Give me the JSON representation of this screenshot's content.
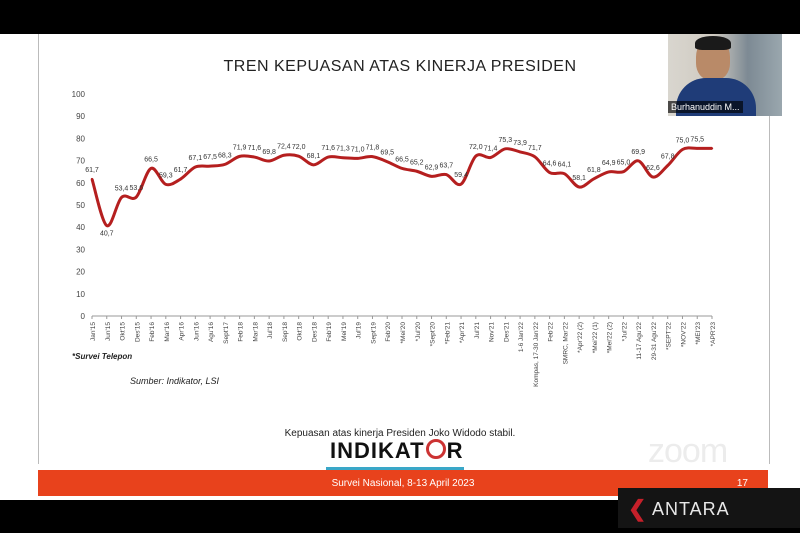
{
  "slide": {
    "title": "TREN KEPUASAN ATAS KINERJA PRESIDEN",
    "note_survey": "*Survei Telepon",
    "note_source": "Sumber: Indikator, LSI",
    "caption": "Kepuasan atas kinerja Presiden Joko Widodo stabil.",
    "logo": {
      "prefix": "INDIKAT",
      "suffix": "R"
    },
    "footer_text": "Survei Nasional, 8-13 April 2023",
    "page_number": "17"
  },
  "video": {
    "participant_name": "Burhanuddin M...",
    "watermark": "zoom",
    "agency": "ANTARA"
  },
  "colors": {
    "line": "#b51f1f",
    "footer": "#e8421c",
    "logo_bar": "#3aa7c8"
  },
  "chart_data": {
    "type": "line",
    "title": "TREN KEPUASAN ATAS KINERJA PRESIDEN",
    "ylim": [
      0,
      100
    ],
    "yticks": [
      0,
      10,
      20,
      30,
      40,
      50,
      60,
      70,
      80,
      90,
      100
    ],
    "grid": false,
    "legend": "none",
    "categories": [
      "Jan'15",
      "Jun'15",
      "Okt'15",
      "Des'15",
      "Feb'16",
      "Mar'16",
      "Apr'16",
      "Jun'16",
      "Agu'16",
      "Sept'17",
      "Feb'18",
      "Mar'18",
      "Jul'18",
      "Sep'18",
      "Okt'18",
      "Des'18",
      "Feb'19",
      "Mei'19",
      "Jul'19",
      "Sept'19",
      "Feb'20",
      "*Mei'20",
      "*Jul'20",
      "*Sept'20",
      "*Feb'21",
      "*Apr'21",
      "Jul'21",
      "Nov'21",
      "Des'21",
      "1-6 Jan'22",
      "Kompas, 17-30 Jan'22",
      "Feb'22",
      "SMRC, Mar'22",
      "*Apr'22 (2)",
      "*Mei'22 (1)",
      "*Mei'22 (2)",
      "*Jul'22",
      "11-17 Agu'22",
      "29-31 Agu'22",
      "*SEPT'22",
      "*NOV'22",
      "*MEI'23",
      "*APR'23"
    ],
    "values": [
      61.7,
      40.7,
      53.4,
      53.6,
      66.5,
      59.3,
      61.7,
      67.1,
      67.5,
      68.3,
      71.9,
      71.6,
      69.8,
      72.4,
      72.0,
      68.1,
      71.6,
      71.3,
      71.0,
      71.8,
      69.5,
      66.5,
      65.2,
      62.9,
      63.7,
      59.4,
      72.0,
      71.4,
      75.3,
      73.9,
      71.7,
      64.6,
      64.1,
      58.1,
      61.8,
      64.9,
      65.0,
      69.9,
      62.6,
      67.8,
      75.0,
      75.5,
      75.5
    ],
    "point_labels": [
      "61,7",
      "40,7",
      "53,4",
      "53,6",
      "66,5",
      "59,3",
      "61,7",
      "67,1",
      "67,5",
      "68,3",
      "71,9",
      "71,6",
      "69,8",
      "72,4",
      "72,0",
      "68,1",
      "71,6",
      "71,3",
      "71,0",
      "71,8",
      "69,5",
      "66,5",
      "65,2",
      "62,9",
      "63,7",
      "59,4",
      "72,0",
      "71,4",
      "75,3",
      "73,9",
      "71,7",
      "64,6",
      "64,1",
      "58,1",
      "61,8",
      "64,9",
      "65,0",
      "69,9",
      "62,6",
      "67,8",
      "75,0",
      "75,5",
      ""
    ]
  }
}
